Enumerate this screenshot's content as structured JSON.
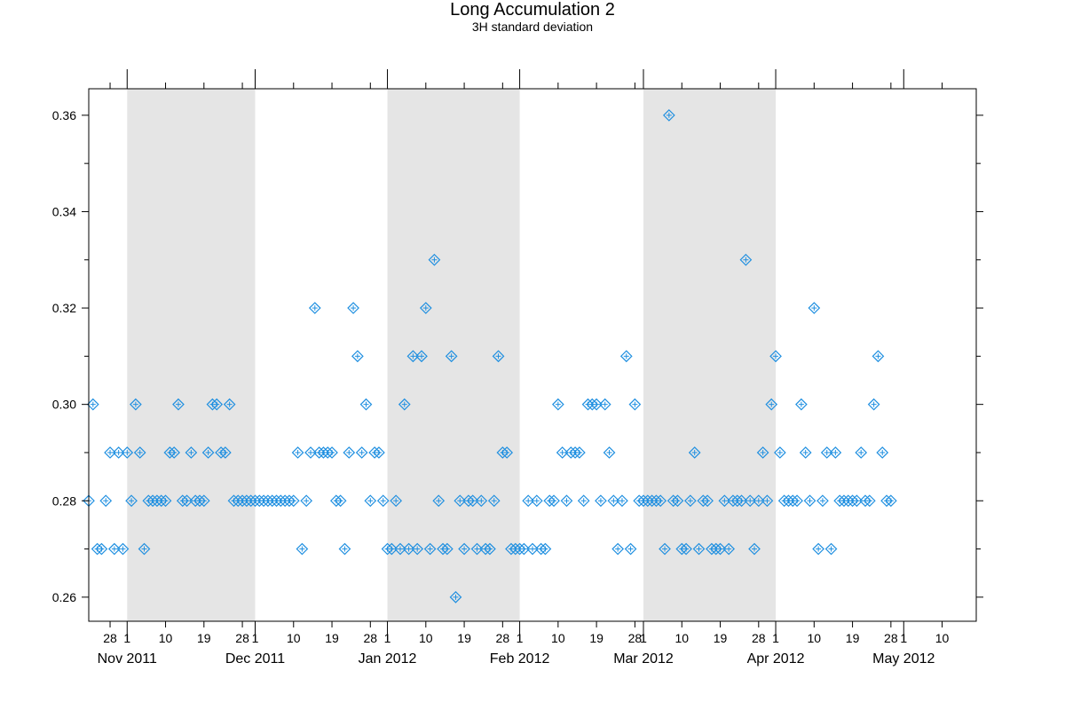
{
  "chart_data": {
    "type": "scatter",
    "title": "Long Accumulation 2",
    "subtitle": "3H standard deviation",
    "xlabel": "",
    "ylabel": "",
    "x_start": "2011-10-23",
    "x_end": "2012-05-18",
    "ylim": [
      0.255,
      0.3655
    ],
    "yticks": [
      0.26,
      0.28,
      0.3,
      0.32,
      0.34,
      0.36
    ],
    "ytick_labels": [
      "0.26",
      "0.28",
      "0.30",
      "0.32",
      "0.34",
      "0.36"
    ],
    "day_ticks": [
      {
        "date": "2011-10-28",
        "label": "28"
      },
      {
        "date": "2011-11-01",
        "label": "1"
      },
      {
        "date": "2011-11-10",
        "label": "10"
      },
      {
        "date": "2011-11-19",
        "label": "19"
      },
      {
        "date": "2011-11-28",
        "label": "28"
      },
      {
        "date": "2011-12-01",
        "label": "1"
      },
      {
        "date": "2011-12-10",
        "label": "10"
      },
      {
        "date": "2011-12-19",
        "label": "19"
      },
      {
        "date": "2011-12-28",
        "label": "28"
      },
      {
        "date": "2012-01-01",
        "label": "1"
      },
      {
        "date": "2012-01-10",
        "label": "10"
      },
      {
        "date": "2012-01-19",
        "label": "19"
      },
      {
        "date": "2012-01-28",
        "label": "28"
      },
      {
        "date": "2012-02-01",
        "label": "1"
      },
      {
        "date": "2012-02-10",
        "label": "10"
      },
      {
        "date": "2012-02-19",
        "label": "19"
      },
      {
        "date": "2012-02-28",
        "label": "28"
      },
      {
        "date": "2012-03-01",
        "label": "1"
      },
      {
        "date": "2012-03-10",
        "label": "10"
      },
      {
        "date": "2012-03-19",
        "label": "19"
      },
      {
        "date": "2012-03-28",
        "label": "28"
      },
      {
        "date": "2012-04-01",
        "label": "1"
      },
      {
        "date": "2012-04-10",
        "label": "10"
      },
      {
        "date": "2012-04-19",
        "label": "19"
      },
      {
        "date": "2012-04-28",
        "label": "28"
      },
      {
        "date": "2012-05-01",
        "label": "1"
      },
      {
        "date": "2012-05-10",
        "label": "10"
      }
    ],
    "month_labels": [
      {
        "date": "2011-11-01",
        "label": "Nov 2011"
      },
      {
        "date": "2011-12-01",
        "label": "Dec 2011"
      },
      {
        "date": "2012-01-01",
        "label": "Jan 2012"
      },
      {
        "date": "2012-02-01",
        "label": "Feb 2012"
      },
      {
        "date": "2012-03-01",
        "label": "Mar 2012"
      },
      {
        "date": "2012-04-01",
        "label": "Apr 2012"
      },
      {
        "date": "2012-05-01",
        "label": "May 2012"
      }
    ],
    "shaded_months": [
      {
        "from": "2011-11-01",
        "to": "2011-12-01"
      },
      {
        "from": "2012-01-01",
        "to": "2012-02-01"
      },
      {
        "from": "2012-03-01",
        "to": "2012-04-01"
      }
    ],
    "grid": false,
    "marker_color": "#1f8fe0",
    "shade_color": "#e5e5e5",
    "series": [
      {
        "points": [
          [
            "2011-10-23",
            0.28
          ],
          [
            "2011-10-24",
            0.3
          ],
          [
            "2011-10-25",
            0.27
          ],
          [
            "2011-10-26",
            0.27
          ],
          [
            "2011-10-27",
            0.28
          ],
          [
            "2011-10-28",
            0.29
          ],
          [
            "2011-10-29",
            0.27
          ],
          [
            "2011-10-30",
            0.29
          ],
          [
            "2011-10-31",
            0.27
          ],
          [
            "2011-11-01",
            0.29
          ],
          [
            "2011-11-02",
            0.28
          ],
          [
            "2011-11-03",
            0.3
          ],
          [
            "2011-11-04",
            0.29
          ],
          [
            "2011-11-05",
            0.27
          ],
          [
            "2011-11-06",
            0.28
          ],
          [
            "2011-11-07",
            0.28
          ],
          [
            "2011-11-08",
            0.28
          ],
          [
            "2011-11-09",
            0.28
          ],
          [
            "2011-11-10",
            0.28
          ],
          [
            "2011-11-11",
            0.29
          ],
          [
            "2011-11-12",
            0.29
          ],
          [
            "2011-11-13",
            0.3
          ],
          [
            "2011-11-14",
            0.28
          ],
          [
            "2011-11-15",
            0.28
          ],
          [
            "2011-11-16",
            0.29
          ],
          [
            "2011-11-17",
            0.28
          ],
          [
            "2011-11-18",
            0.28
          ],
          [
            "2011-11-19",
            0.28
          ],
          [
            "2011-11-20",
            0.29
          ],
          [
            "2011-11-21",
            0.3
          ],
          [
            "2011-11-22",
            0.3
          ],
          [
            "2011-11-23",
            0.29
          ],
          [
            "2011-11-24",
            0.29
          ],
          [
            "2011-11-25",
            0.3
          ],
          [
            "2011-11-26",
            0.28
          ],
          [
            "2011-11-27",
            0.28
          ],
          [
            "2011-11-28",
            0.28
          ],
          [
            "2011-11-29",
            0.28
          ],
          [
            "2011-11-30",
            0.28
          ],
          [
            "2011-12-01",
            0.28
          ],
          [
            "2011-12-02",
            0.28
          ],
          [
            "2011-12-03",
            0.28
          ],
          [
            "2011-12-04",
            0.28
          ],
          [
            "2011-12-05",
            0.28
          ],
          [
            "2011-12-06",
            0.28
          ],
          [
            "2011-12-07",
            0.28
          ],
          [
            "2011-12-08",
            0.28
          ],
          [
            "2011-12-09",
            0.28
          ],
          [
            "2011-12-10",
            0.28
          ],
          [
            "2011-12-11",
            0.29
          ],
          [
            "2011-12-12",
            0.27
          ],
          [
            "2011-12-13",
            0.28
          ],
          [
            "2011-12-14",
            0.29
          ],
          [
            "2011-12-15",
            0.32
          ],
          [
            "2011-12-16",
            0.29
          ],
          [
            "2011-12-17",
            0.29
          ],
          [
            "2011-12-18",
            0.29
          ],
          [
            "2011-12-19",
            0.29
          ],
          [
            "2011-12-20",
            0.28
          ],
          [
            "2011-12-21",
            0.28
          ],
          [
            "2011-12-22",
            0.27
          ],
          [
            "2011-12-23",
            0.29
          ],
          [
            "2011-12-24",
            0.32
          ],
          [
            "2011-12-25",
            0.31
          ],
          [
            "2011-12-26",
            0.29
          ],
          [
            "2011-12-27",
            0.3
          ],
          [
            "2011-12-28",
            0.28
          ],
          [
            "2011-12-29",
            0.29
          ],
          [
            "2011-12-30",
            0.29
          ],
          [
            "2011-12-31",
            0.28
          ],
          [
            "2012-01-01",
            0.27
          ],
          [
            "2012-01-02",
            0.27
          ],
          [
            "2012-01-03",
            0.28
          ],
          [
            "2012-01-04",
            0.27
          ],
          [
            "2012-01-05",
            0.3
          ],
          [
            "2012-01-06",
            0.27
          ],
          [
            "2012-01-07",
            0.31
          ],
          [
            "2012-01-08",
            0.27
          ],
          [
            "2012-01-09",
            0.31
          ],
          [
            "2012-01-10",
            0.32
          ],
          [
            "2012-01-11",
            0.27
          ],
          [
            "2012-01-12",
            0.33
          ],
          [
            "2012-01-13",
            0.28
          ],
          [
            "2012-01-14",
            0.27
          ],
          [
            "2012-01-15",
            0.27
          ],
          [
            "2012-01-16",
            0.31
          ],
          [
            "2012-01-17",
            0.26
          ],
          [
            "2012-01-18",
            0.28
          ],
          [
            "2012-01-19",
            0.27
          ],
          [
            "2012-01-20",
            0.28
          ],
          [
            "2012-01-21",
            0.28
          ],
          [
            "2012-01-22",
            0.27
          ],
          [
            "2012-01-23",
            0.28
          ],
          [
            "2012-01-24",
            0.27
          ],
          [
            "2012-01-25",
            0.27
          ],
          [
            "2012-01-26",
            0.28
          ],
          [
            "2012-01-27",
            0.31
          ],
          [
            "2012-01-28",
            0.29
          ],
          [
            "2012-01-29",
            0.29
          ],
          [
            "2012-01-30",
            0.27
          ],
          [
            "2012-01-31",
            0.27
          ],
          [
            "2012-02-01",
            0.27
          ],
          [
            "2012-02-02",
            0.27
          ],
          [
            "2012-02-03",
            0.28
          ],
          [
            "2012-02-04",
            0.27
          ],
          [
            "2012-02-05",
            0.28
          ],
          [
            "2012-02-06",
            0.27
          ],
          [
            "2012-02-07",
            0.27
          ],
          [
            "2012-02-08",
            0.28
          ],
          [
            "2012-02-09",
            0.28
          ],
          [
            "2012-02-10",
            0.3
          ],
          [
            "2012-02-11",
            0.29
          ],
          [
            "2012-02-12",
            0.28
          ],
          [
            "2012-02-13",
            0.29
          ],
          [
            "2012-02-14",
            0.29
          ],
          [
            "2012-02-15",
            0.29
          ],
          [
            "2012-02-16",
            0.28
          ],
          [
            "2012-02-17",
            0.3
          ],
          [
            "2012-02-18",
            0.3
          ],
          [
            "2012-02-19",
            0.3
          ],
          [
            "2012-02-20",
            0.28
          ],
          [
            "2012-02-21",
            0.3
          ],
          [
            "2012-02-22",
            0.29
          ],
          [
            "2012-02-23",
            0.28
          ],
          [
            "2012-02-24",
            0.27
          ],
          [
            "2012-02-25",
            0.28
          ],
          [
            "2012-02-26",
            0.31
          ],
          [
            "2012-02-27",
            0.27
          ],
          [
            "2012-02-28",
            0.3
          ],
          [
            "2012-02-29",
            0.28
          ],
          [
            "2012-03-01",
            0.28
          ],
          [
            "2012-03-02",
            0.28
          ],
          [
            "2012-03-03",
            0.28
          ],
          [
            "2012-03-04",
            0.28
          ],
          [
            "2012-03-05",
            0.28
          ],
          [
            "2012-03-06",
            0.27
          ],
          [
            "2012-03-07",
            0.36
          ],
          [
            "2012-03-08",
            0.28
          ],
          [
            "2012-03-09",
            0.28
          ],
          [
            "2012-03-10",
            0.27
          ],
          [
            "2012-03-11",
            0.27
          ],
          [
            "2012-03-12",
            0.28
          ],
          [
            "2012-03-13",
            0.29
          ],
          [
            "2012-03-14",
            0.27
          ],
          [
            "2012-03-15",
            0.28
          ],
          [
            "2012-03-16",
            0.28
          ],
          [
            "2012-03-17",
            0.27
          ],
          [
            "2012-03-18",
            0.27
          ],
          [
            "2012-03-19",
            0.27
          ],
          [
            "2012-03-20",
            0.28
          ],
          [
            "2012-03-21",
            0.27
          ],
          [
            "2012-03-22",
            0.28
          ],
          [
            "2012-03-23",
            0.28
          ],
          [
            "2012-03-24",
            0.28
          ],
          [
            "2012-03-25",
            0.33
          ],
          [
            "2012-03-26",
            0.28
          ],
          [
            "2012-03-27",
            0.27
          ],
          [
            "2012-03-28",
            0.28
          ],
          [
            "2012-03-29",
            0.29
          ],
          [
            "2012-03-30",
            0.28
          ],
          [
            "2012-03-31",
            0.3
          ],
          [
            "2012-04-01",
            0.31
          ],
          [
            "2012-04-02",
            0.29
          ],
          [
            "2012-04-03",
            0.28
          ],
          [
            "2012-04-04",
            0.28
          ],
          [
            "2012-04-05",
            0.28
          ],
          [
            "2012-04-06",
            0.28
          ],
          [
            "2012-04-07",
            0.3
          ],
          [
            "2012-04-08",
            0.29
          ],
          [
            "2012-04-09",
            0.28
          ],
          [
            "2012-04-10",
            0.32
          ],
          [
            "2012-04-11",
            0.27
          ],
          [
            "2012-04-12",
            0.28
          ],
          [
            "2012-04-13",
            0.29
          ],
          [
            "2012-04-14",
            0.27
          ],
          [
            "2012-04-15",
            0.29
          ],
          [
            "2012-04-16",
            0.28
          ],
          [
            "2012-04-17",
            0.28
          ],
          [
            "2012-04-18",
            0.28
          ],
          [
            "2012-04-19",
            0.28
          ],
          [
            "2012-04-20",
            0.28
          ],
          [
            "2012-04-21",
            0.29
          ],
          [
            "2012-04-22",
            0.28
          ],
          [
            "2012-04-23",
            0.28
          ],
          [
            "2012-04-24",
            0.3
          ],
          [
            "2012-04-25",
            0.31
          ],
          [
            "2012-04-26",
            0.29
          ],
          [
            "2012-04-27",
            0.28
          ],
          [
            "2012-04-28",
            0.28
          ]
        ]
      }
    ]
  }
}
